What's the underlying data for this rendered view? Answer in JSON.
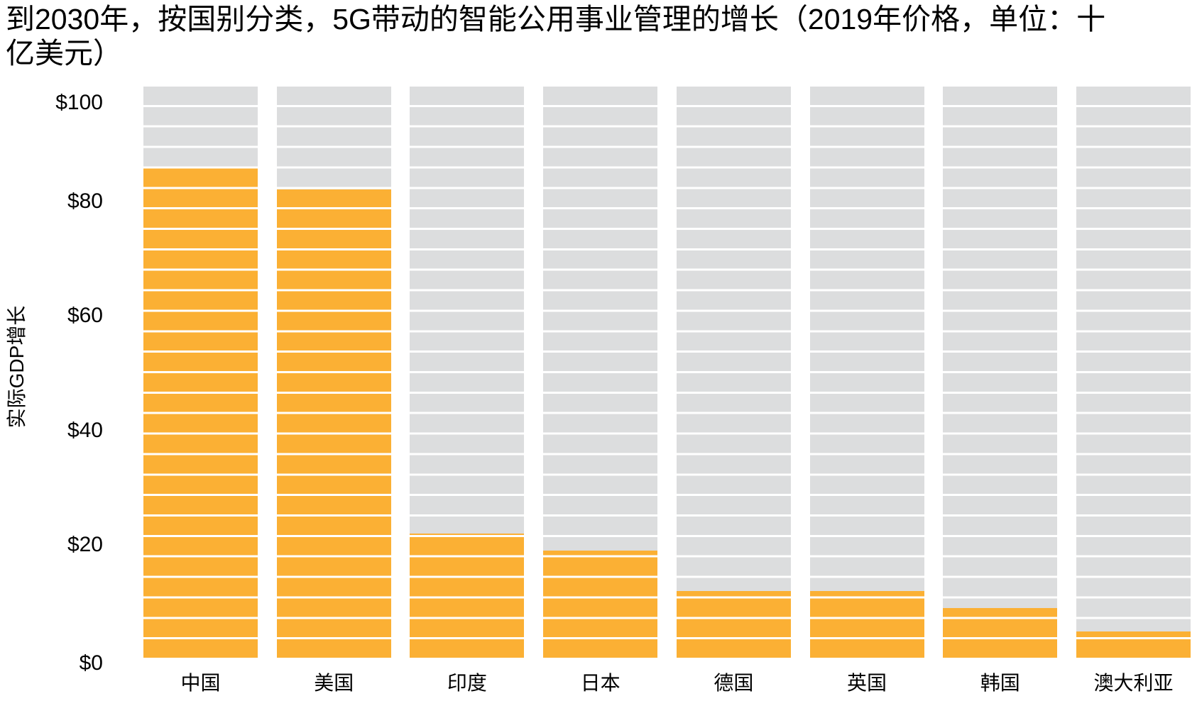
{
  "title": "到2030年，按国别分类，5G带动的智能公用事业管理的增长（2019年价格，单位：十亿美元）",
  "y_axis": {
    "label": "实际GDP增长"
  },
  "colors": {
    "bar": "#FBB034",
    "track": "#DCDDDE",
    "background": "#FFFFFF",
    "text": "#000000"
  },
  "chart_data": {
    "type": "bar",
    "title": "到2030年，按国别分类，5G带动的智能公用事业管理的增长（2019年价格，单位：十亿美元）",
    "categories": [
      "中国",
      "美国",
      "印度",
      "日本",
      "德国",
      "英国",
      "韩国",
      "澳大利亚"
    ],
    "values": [
      86,
      82,
      22,
      19,
      12,
      12,
      9,
      5
    ],
    "xlabel": "",
    "ylabel": "实际GDP增长",
    "ylim": [
      0,
      100
    ],
    "yticks": [
      {
        "label": "$0",
        "value": 0
      },
      {
        "label": "$20",
        "value": 20
      },
      {
        "label": "$40",
        "value": 40
      },
      {
        "label": "$60",
        "value": 60
      },
      {
        "label": "$80",
        "value": 80
      },
      {
        "label": "$100",
        "value": 100
      }
    ],
    "legend": null,
    "grid": false,
    "bar_style": "segmented-stripes",
    "stripe_segments_per_bar": 28,
    "bar_color": "#FBB034",
    "track_color": "#DCDDDE"
  }
}
